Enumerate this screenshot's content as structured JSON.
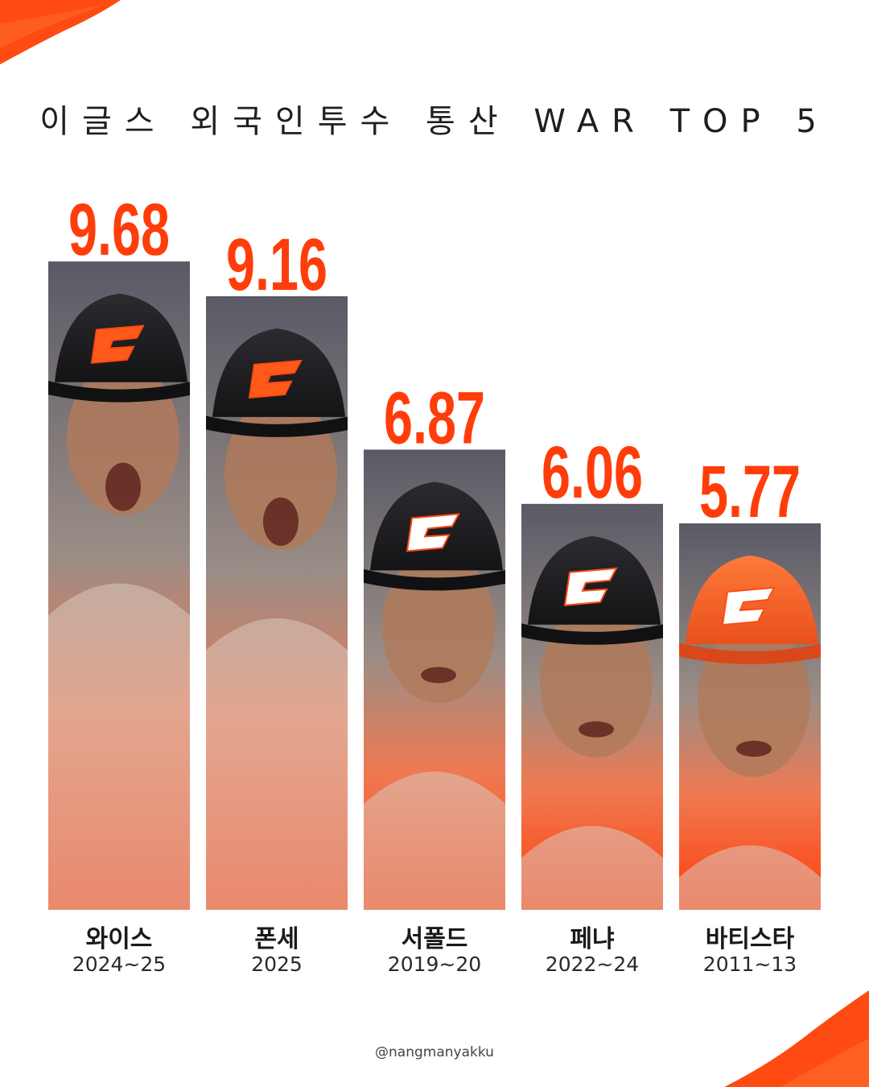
{
  "title": "이글스 외국인투수 통산 WAR TOP 5",
  "credit": "@nangmanyakku",
  "colors": {
    "accent": "#ff3d0a",
    "text": "#1a1a1a",
    "background": "#ffffff"
  },
  "chart_data": {
    "type": "bar",
    "title": "이글스 외국인투수 통산 WAR TOP 5",
    "categories": [
      "와이스",
      "폰세",
      "서폴드",
      "페냐",
      "바티스타"
    ],
    "years": [
      "2024~25",
      "2025",
      "2019~20",
      "2022~24",
      "2011~13"
    ],
    "values": [
      9.68,
      9.16,
      6.87,
      6.06,
      5.77
    ],
    "value_labels": [
      "9.68",
      "9.16",
      "6.87",
      "6.06",
      "5.77"
    ],
    "xlabel": "",
    "ylabel": "",
    "grid": false,
    "legend": "none"
  }
}
